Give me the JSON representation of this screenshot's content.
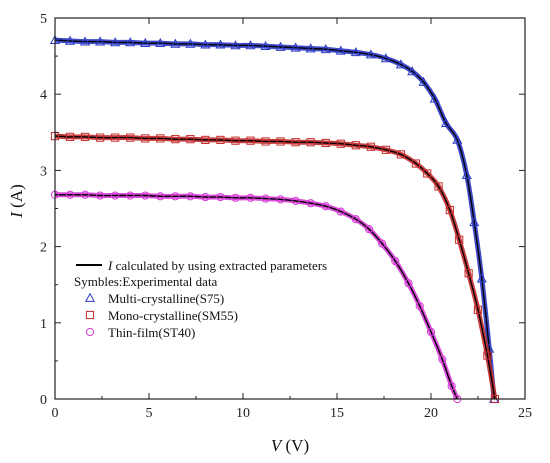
{
  "chart_data": {
    "type": "scatter",
    "xlabel": "V (V)",
    "ylabel": "I (A)",
    "xlabel_var": "V",
    "xlabel_unit": " (V)",
    "ylabel_var": "I",
    "ylabel_unit": " (A)",
    "xlim": [
      0,
      25
    ],
    "ylim": [
      0,
      5
    ],
    "xticks": [
      "0",
      "5",
      "10",
      "15",
      "20",
      "25"
    ],
    "yticks": [
      "0",
      "1",
      "2",
      "3",
      "4",
      "5"
    ],
    "grid": false,
    "legend": {
      "placement": "bottom-left",
      "line_entry": {
        "var": "I",
        "text": " calculated by using extracted parameters"
      },
      "symbols_title": "Symbles:Experimental data",
      "line_color": "#000000"
    },
    "series": [
      {
        "name": "Multi-crystalline(S75)",
        "marker": "triangle",
        "color": "#2b39c4",
        "x": [
          0,
          0.8,
          1.6,
          2.4,
          3.2,
          4.0,
          4.8,
          5.6,
          6.4,
          7.2,
          8.0,
          8.8,
          9.6,
          10.4,
          11.2,
          12.0,
          12.8,
          13.6,
          14.4,
          15.2,
          16.0,
          16.8,
          17.6,
          18.4,
          19.0,
          19.6,
          20.2,
          20.8,
          21.4,
          21.9,
          22.3,
          22.7,
          23.1,
          23.35
        ],
        "y": [
          4.71,
          4.7,
          4.69,
          4.69,
          4.68,
          4.68,
          4.67,
          4.67,
          4.66,
          4.66,
          4.65,
          4.65,
          4.64,
          4.64,
          4.63,
          4.62,
          4.61,
          4.6,
          4.59,
          4.57,
          4.55,
          4.52,
          4.47,
          4.39,
          4.3,
          4.16,
          3.94,
          3.62,
          3.4,
          2.94,
          2.32,
          1.58,
          0.66,
          0.0
        ]
      },
      {
        "name": "Mono-crystalline(SM55)",
        "marker": "square",
        "color": "#c42b2b",
        "x": [
          0,
          0.8,
          1.6,
          2.4,
          3.2,
          4.0,
          4.8,
          5.6,
          6.4,
          7.2,
          8.0,
          8.8,
          9.6,
          10.4,
          11.2,
          12.0,
          12.8,
          13.6,
          14.4,
          15.2,
          16.0,
          16.8,
          17.6,
          18.4,
          19.2,
          19.8,
          20.4,
          21.0,
          21.5,
          22.0,
          22.5,
          23.0,
          23.4
        ],
        "y": [
          3.45,
          3.44,
          3.44,
          3.43,
          3.43,
          3.43,
          3.42,
          3.42,
          3.41,
          3.41,
          3.4,
          3.4,
          3.39,
          3.39,
          3.38,
          3.38,
          3.37,
          3.37,
          3.36,
          3.35,
          3.33,
          3.31,
          3.27,
          3.21,
          3.09,
          2.96,
          2.79,
          2.48,
          2.09,
          1.65,
          1.17,
          0.57,
          0.0
        ]
      },
      {
        "name": "Thin-film(ST40)",
        "marker": "circle",
        "color": "#d63ad6",
        "x": [
          0,
          0.8,
          1.6,
          2.4,
          3.2,
          4.0,
          4.8,
          5.6,
          6.4,
          7.2,
          8.0,
          8.8,
          9.6,
          10.4,
          11.2,
          12.0,
          12.8,
          13.6,
          14.4,
          15.2,
          16.0,
          16.7,
          17.4,
          18.1,
          18.8,
          19.4,
          20.0,
          20.6,
          21.1,
          21.4
        ],
        "y": [
          2.68,
          2.68,
          2.68,
          2.67,
          2.67,
          2.67,
          2.67,
          2.66,
          2.66,
          2.66,
          2.65,
          2.65,
          2.64,
          2.64,
          2.63,
          2.62,
          2.6,
          2.57,
          2.53,
          2.46,
          2.36,
          2.23,
          2.04,
          1.81,
          1.52,
          1.22,
          0.88,
          0.52,
          0.17,
          0.0
        ]
      }
    ]
  }
}
